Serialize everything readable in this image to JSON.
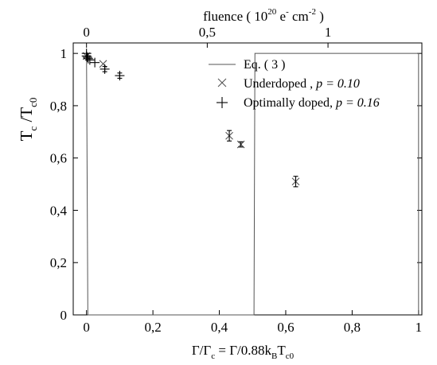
{
  "chart_data": {
    "type": "scatter",
    "x_axis": {
      "label_main": "Γ/Γ",
      "label_sub": "c",
      "label_rest": " = Γ/0.88k",
      "label_sub2": "B",
      "label_rest2": "T",
      "label_sub3": "c0",
      "range": [
        -0.04,
        1.01
      ],
      "ticks": [
        0,
        0.2,
        0.4,
        0.6,
        0.8,
        1
      ],
      "tick_labels": [
        "0",
        "0,2",
        "0,4",
        "0,6",
        "0,8",
        "1"
      ]
    },
    "x2_axis": {
      "label_pre": "fluence ( 10",
      "label_sup": "20",
      "label_mid": " e",
      "label_sup2": "-",
      "label_mid2": " cm",
      "label_sup3": "-2",
      "label_post": " )",
      "x_per_unit": 0.7273,
      "ticks": [
        0,
        0.5,
        1
      ],
      "tick_labels": [
        "0",
        "0,5",
        "1"
      ]
    },
    "y_axis": {
      "label_main": "T",
      "label_sub": "c",
      "label_slash": " /T",
      "label_sub2": "c0",
      "range": [
        0,
        1.04
      ],
      "ticks": [
        0,
        0.2,
        0.4,
        0.6,
        0.8,
        1
      ],
      "tick_labels": [
        "0",
        "0,2",
        "0,4",
        "0,6",
        "0,8",
        "1"
      ]
    },
    "legend": {
      "position": "top-right",
      "entries": [
        {
          "id": "eq",
          "text": "Eq. ( 3 )",
          "marker": "line"
        },
        {
          "id": "under",
          "text_pre": "Underdoped , ",
          "text_p": "p = 0.10",
          "marker": "x"
        },
        {
          "id": "opt",
          "text_pre": "Optimally doped, ",
          "text_p": "p = 0.16",
          "marker": "plus"
        }
      ]
    },
    "series": [
      {
        "name": "Eq. ( 3 )",
        "kind": "curve",
        "x_max": 1.0
      },
      {
        "name": "Underdoped , p = 0.10",
        "marker": "x",
        "points": [
          {
            "x": 0.0,
            "y": 0.99,
            "err": 0.0
          },
          {
            "x": 0.05,
            "y": 0.96,
            "err": 0.0
          },
          {
            "x": 0.43,
            "y": 0.685,
            "err": 0.02
          },
          {
            "x": 0.465,
            "y": 0.652,
            "err": 0.01
          },
          {
            "x": 0.63,
            "y": 0.51,
            "err": 0.02
          }
        ]
      },
      {
        "name": "Optimally doped, p = 0.16",
        "marker": "plus",
        "points": [
          {
            "x": 0.0,
            "y": 1.0,
            "err": 0.0
          },
          {
            "x": 0.0,
            "y": 0.99,
            "err": 0.0
          },
          {
            "x": 0.003,
            "y": 0.985,
            "err": 0.0
          },
          {
            "x": 0.005,
            "y": 0.98,
            "err": 0.0
          },
          {
            "x": 0.01,
            "y": 0.975,
            "err": 0.0
          },
          {
            "x": 0.025,
            "y": 0.965,
            "err": 0.0
          },
          {
            "x": 0.055,
            "y": 0.94,
            "err": 0.01
          },
          {
            "x": 0.1,
            "y": 0.915,
            "err": 0.01
          }
        ]
      }
    ]
  }
}
